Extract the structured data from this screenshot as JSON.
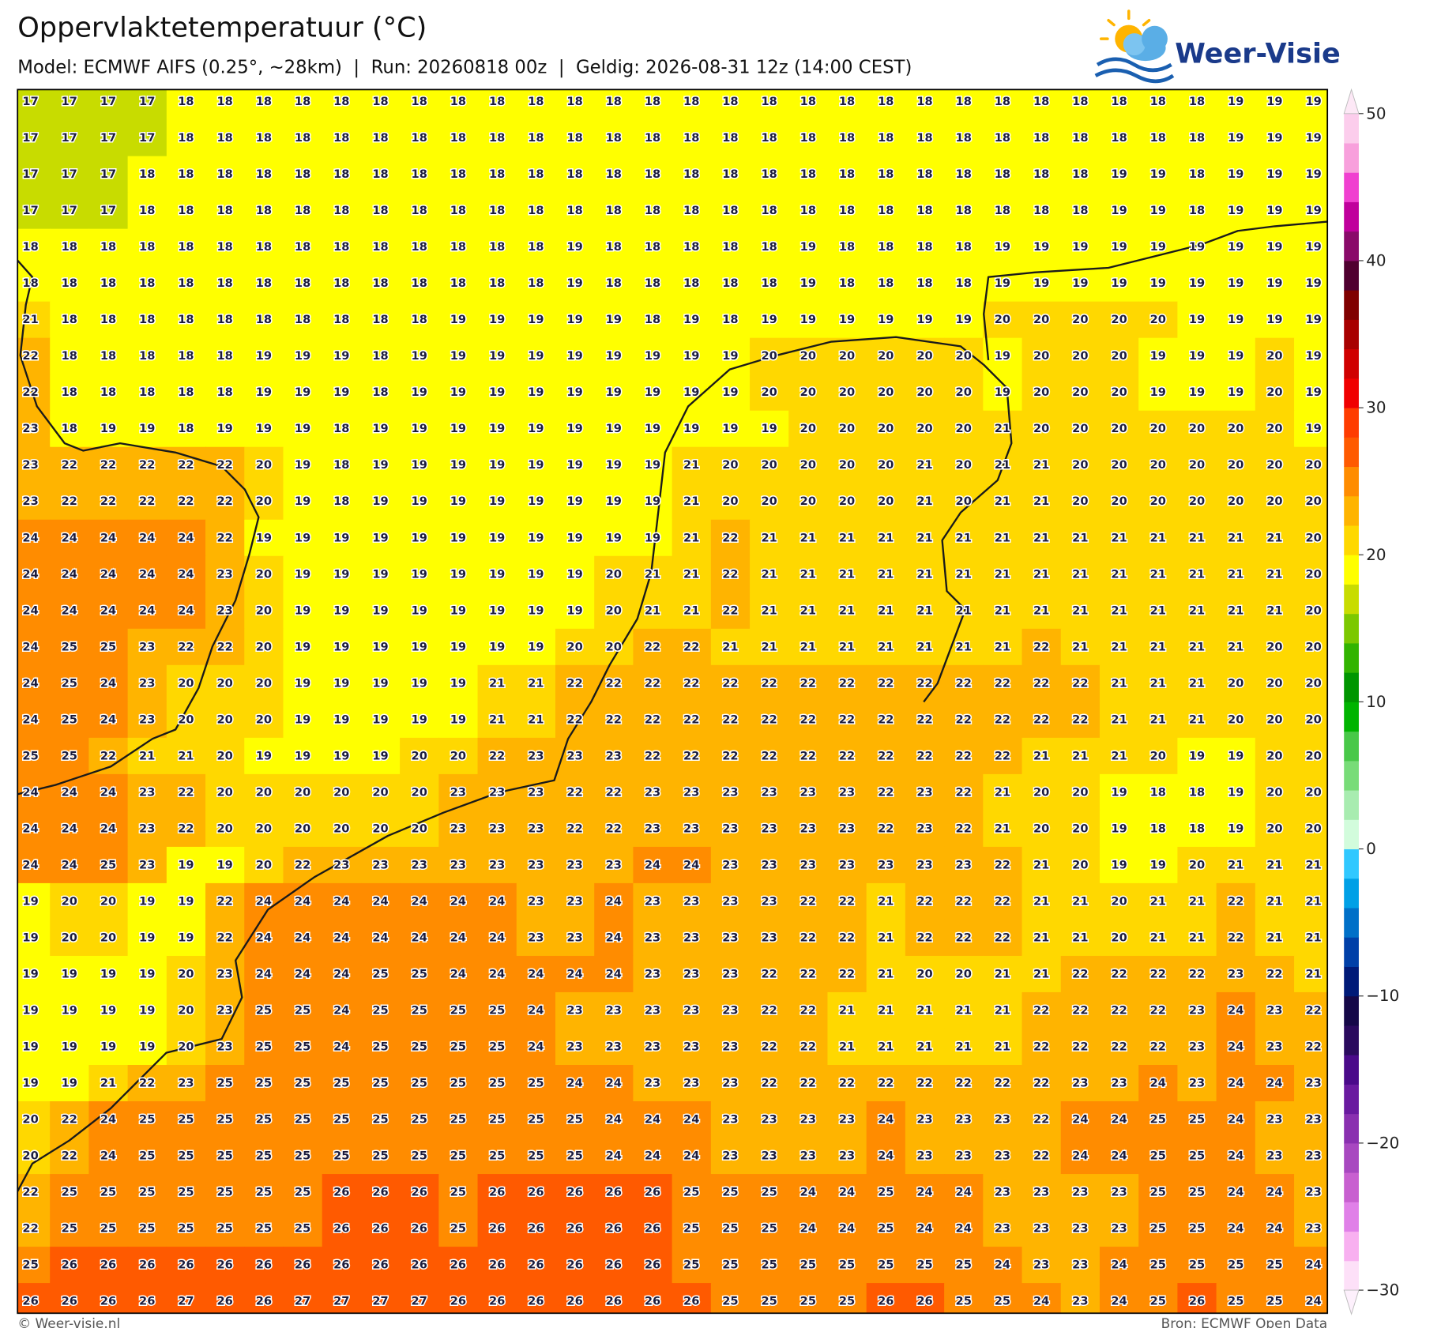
{
  "header": {
    "title": "Oppervlaktetemperatuur (°C)",
    "subtitle": "Model: ECMWF AIFS (0.25°, ~28km)  |  Run: 20260818 00z  |  Geldig: 2026-08-31 12z (14:00 CEST)",
    "logo_text": "Weer-Visie"
  },
  "map": {
    "values": [
      [
        17,
        17,
        17,
        17,
        18,
        18,
        18,
        18,
        18,
        18,
        18,
        18,
        18,
        18,
        18,
        18,
        18,
        18,
        18,
        18,
        18,
        18,
        18,
        18,
        18,
        18,
        18,
        18,
        18,
        18,
        18,
        19,
        19,
        19
      ],
      [
        17,
        17,
        17,
        17,
        18,
        18,
        18,
        18,
        18,
        18,
        18,
        18,
        18,
        18,
        18,
        18,
        18,
        18,
        18,
        18,
        18,
        18,
        18,
        18,
        18,
        18,
        18,
        18,
        18,
        18,
        18,
        19,
        19,
        19
      ],
      [
        17,
        17,
        17,
        18,
        18,
        18,
        18,
        18,
        18,
        18,
        18,
        18,
        18,
        18,
        18,
        18,
        18,
        18,
        18,
        18,
        18,
        18,
        18,
        18,
        18,
        18,
        18,
        18,
        19,
        19,
        18,
        19,
        19,
        19
      ],
      [
        17,
        17,
        17,
        18,
        18,
        18,
        18,
        18,
        18,
        18,
        18,
        18,
        18,
        18,
        18,
        18,
        18,
        18,
        18,
        18,
        18,
        18,
        18,
        18,
        18,
        18,
        18,
        18,
        19,
        19,
        18,
        19,
        19,
        19
      ],
      [
        18,
        18,
        18,
        18,
        18,
        18,
        18,
        18,
        18,
        18,
        18,
        18,
        18,
        18,
        19,
        18,
        18,
        18,
        18,
        18,
        19,
        18,
        18,
        18,
        18,
        19,
        19,
        19,
        19,
        19,
        19,
        19,
        19,
        19
      ],
      [
        18,
        18,
        18,
        18,
        18,
        18,
        18,
        18,
        18,
        18,
        18,
        18,
        18,
        18,
        19,
        18,
        18,
        18,
        18,
        18,
        19,
        18,
        18,
        18,
        18,
        19,
        19,
        19,
        19,
        19,
        19,
        19,
        19,
        19
      ],
      [
        21,
        18,
        18,
        18,
        18,
        18,
        18,
        18,
        18,
        18,
        18,
        19,
        19,
        19,
        19,
        19,
        18,
        19,
        18,
        19,
        19,
        19,
        19,
        19,
        19,
        20,
        20,
        20,
        20,
        20,
        19,
        19,
        19,
        19
      ],
      [
        22,
        18,
        18,
        18,
        18,
        18,
        19,
        19,
        19,
        18,
        19,
        19,
        19,
        19,
        19,
        19,
        19,
        19,
        19,
        20,
        20,
        20,
        20,
        20,
        20,
        19,
        20,
        20,
        20,
        19,
        19,
        19,
        20,
        19
      ],
      [
        22,
        18,
        18,
        18,
        18,
        18,
        19,
        19,
        19,
        18,
        19,
        19,
        19,
        19,
        19,
        19,
        19,
        19,
        19,
        20,
        20,
        20,
        20,
        20,
        20,
        19,
        20,
        20,
        20,
        19,
        19,
        19,
        20,
        19
      ],
      [
        23,
        18,
        19,
        19,
        18,
        19,
        19,
        19,
        18,
        19,
        19,
        19,
        19,
        19,
        19,
        19,
        19,
        19,
        19,
        19,
        20,
        20,
        20,
        20,
        20,
        21,
        20,
        20,
        20,
        20,
        20,
        20,
        20,
        19
      ],
      [
        23,
        22,
        22,
        22,
        22,
        22,
        20,
        19,
        18,
        19,
        19,
        19,
        19,
        19,
        19,
        19,
        19,
        21,
        20,
        20,
        20,
        20,
        20,
        21,
        20,
        21,
        21,
        20,
        20,
        20,
        20,
        20,
        20,
        20
      ],
      [
        23,
        22,
        22,
        22,
        22,
        22,
        20,
        19,
        18,
        19,
        19,
        19,
        19,
        19,
        19,
        19,
        19,
        21,
        20,
        20,
        20,
        20,
        20,
        21,
        20,
        21,
        21,
        20,
        20,
        20,
        20,
        20,
        20,
        20
      ],
      [
        24,
        24,
        24,
        24,
        24,
        22,
        19,
        19,
        19,
        19,
        19,
        19,
        19,
        19,
        19,
        19,
        19,
        21,
        22,
        21,
        21,
        21,
        21,
        21,
        21,
        21,
        21,
        21,
        21,
        21,
        21,
        21,
        21,
        20
      ],
      [
        24,
        24,
        24,
        24,
        24,
        23,
        20,
        19,
        19,
        19,
        19,
        19,
        19,
        19,
        19,
        20,
        21,
        21,
        22,
        21,
        21,
        21,
        21,
        21,
        21,
        21,
        21,
        21,
        21,
        21,
        21,
        21,
        21,
        20
      ],
      [
        24,
        24,
        24,
        24,
        24,
        23,
        20,
        19,
        19,
        19,
        19,
        19,
        19,
        19,
        19,
        20,
        21,
        21,
        22,
        21,
        21,
        21,
        21,
        21,
        21,
        21,
        21,
        21,
        21,
        21,
        21,
        21,
        21,
        20
      ],
      [
        24,
        25,
        25,
        23,
        22,
        22,
        20,
        19,
        19,
        19,
        19,
        19,
        19,
        19,
        20,
        20,
        22,
        22,
        21,
        21,
        21,
        21,
        21,
        21,
        21,
        21,
        22,
        21,
        21,
        21,
        21,
        21,
        20,
        20
      ],
      [
        24,
        25,
        24,
        23,
        20,
        20,
        20,
        19,
        19,
        19,
        19,
        19,
        21,
        21,
        22,
        22,
        22,
        22,
        22,
        22,
        22,
        22,
        22,
        22,
        22,
        22,
        22,
        22,
        21,
        21,
        21,
        20,
        20,
        20
      ],
      [
        24,
        25,
        24,
        23,
        20,
        20,
        20,
        19,
        19,
        19,
        19,
        19,
        21,
        21,
        22,
        22,
        22,
        22,
        22,
        22,
        22,
        22,
        22,
        22,
        22,
        22,
        22,
        22,
        21,
        21,
        21,
        20,
        20,
        20
      ],
      [
        25,
        25,
        22,
        21,
        21,
        20,
        19,
        19,
        19,
        19,
        20,
        20,
        22,
        23,
        23,
        23,
        22,
        22,
        22,
        22,
        22,
        22,
        22,
        22,
        22,
        22,
        21,
        21,
        21,
        20,
        19,
        19,
        20,
        20
      ],
      [
        24,
        24,
        24,
        23,
        22,
        20,
        20,
        20,
        20,
        20,
        20,
        23,
        23,
        23,
        22,
        22,
        23,
        23,
        23,
        23,
        23,
        23,
        22,
        23,
        22,
        21,
        20,
        20,
        19,
        18,
        18,
        19,
        20,
        20
      ],
      [
        24,
        24,
        24,
        23,
        22,
        20,
        20,
        20,
        20,
        20,
        20,
        23,
        23,
        23,
        22,
        22,
        23,
        23,
        23,
        23,
        23,
        23,
        22,
        23,
        22,
        21,
        20,
        20,
        19,
        18,
        18,
        19,
        20,
        20
      ],
      [
        24,
        24,
        25,
        23,
        19,
        19,
        20,
        22,
        23,
        23,
        23,
        23,
        23,
        23,
        23,
        23,
        24,
        24,
        23,
        23,
        23,
        23,
        23,
        23,
        23,
        22,
        21,
        20,
        19,
        19,
        20,
        21,
        21,
        21
      ],
      [
        19,
        20,
        20,
        19,
        19,
        22,
        24,
        24,
        24,
        24,
        24,
        24,
        24,
        23,
        23,
        24,
        23,
        23,
        23,
        23,
        22,
        22,
        21,
        22,
        22,
        22,
        21,
        21,
        20,
        21,
        21,
        22,
        21,
        21
      ],
      [
        19,
        20,
        20,
        19,
        19,
        22,
        24,
        24,
        24,
        24,
        24,
        24,
        24,
        23,
        23,
        24,
        23,
        23,
        23,
        23,
        22,
        22,
        21,
        22,
        22,
        22,
        21,
        21,
        20,
        21,
        21,
        22,
        21,
        21
      ],
      [
        19,
        19,
        19,
        19,
        20,
        23,
        24,
        24,
        24,
        25,
        25,
        24,
        24,
        24,
        24,
        24,
        23,
        23,
        23,
        22,
        22,
        22,
        21,
        20,
        20,
        21,
        21,
        22,
        22,
        22,
        22,
        23,
        22,
        21
      ],
      [
        19,
        19,
        19,
        19,
        20,
        23,
        25,
        25,
        24,
        25,
        25,
        25,
        25,
        24,
        23,
        23,
        23,
        23,
        23,
        22,
        22,
        21,
        21,
        21,
        21,
        21,
        22,
        22,
        22,
        22,
        23,
        24,
        23,
        22
      ],
      [
        19,
        19,
        19,
        19,
        20,
        23,
        25,
        25,
        24,
        25,
        25,
        25,
        25,
        24,
        23,
        23,
        23,
        23,
        23,
        22,
        22,
        21,
        21,
        21,
        21,
        21,
        22,
        22,
        22,
        22,
        23,
        24,
        23,
        22
      ],
      [
        19,
        19,
        21,
        22,
        23,
        25,
        25,
        25,
        25,
        25,
        25,
        25,
        25,
        25,
        24,
        24,
        23,
        23,
        23,
        22,
        22,
        22,
        22,
        22,
        22,
        22,
        22,
        23,
        23,
        24,
        23,
        24,
        24,
        23
      ],
      [
        20,
        22,
        24,
        25,
        25,
        25,
        25,
        25,
        25,
        25,
        25,
        25,
        25,
        25,
        25,
        24,
        24,
        24,
        23,
        23,
        23,
        23,
        24,
        23,
        23,
        23,
        22,
        24,
        24,
        25,
        25,
        24,
        23,
        23
      ],
      [
        20,
        22,
        24,
        25,
        25,
        25,
        25,
        25,
        25,
        25,
        25,
        25,
        25,
        25,
        25,
        24,
        24,
        24,
        23,
        23,
        23,
        23,
        24,
        23,
        23,
        23,
        22,
        24,
        24,
        25,
        25,
        24,
        23,
        23
      ],
      [
        22,
        25,
        25,
        25,
        25,
        25,
        25,
        25,
        26,
        26,
        26,
        25,
        26,
        26,
        26,
        26,
        26,
        25,
        25,
        25,
        24,
        24,
        25,
        24,
        24,
        23,
        23,
        23,
        23,
        25,
        25,
        24,
        24,
        23
      ],
      [
        22,
        25,
        25,
        25,
        25,
        25,
        25,
        25,
        26,
        26,
        26,
        25,
        26,
        26,
        26,
        26,
        26,
        25,
        25,
        25,
        24,
        24,
        25,
        24,
        24,
        23,
        23,
        23,
        23,
        25,
        25,
        24,
        24,
        23
      ],
      [
        25,
        26,
        26,
        26,
        26,
        26,
        26,
        26,
        26,
        26,
        26,
        26,
        26,
        26,
        26,
        26,
        26,
        25,
        25,
        25,
        25,
        25,
        25,
        25,
        25,
        24,
        23,
        23,
        24,
        25,
        25,
        25,
        25,
        24
      ],
      [
        26,
        26,
        26,
        26,
        27,
        26,
        26,
        27,
        27,
        27,
        27,
        26,
        26,
        26,
        26,
        26,
        26,
        26,
        25,
        25,
        25,
        25,
        26,
        26,
        25,
        25,
        24,
        23,
        24,
        25,
        26,
        25,
        25,
        24
      ]
    ],
    "colorbar": {
      "levels": [
        -30,
        -28,
        -26,
        -24,
        -22,
        -20,
        -18,
        -16,
        -14,
        -12,
        -10,
        -8,
        -6,
        -4,
        -2,
        0,
        2,
        4,
        6,
        8,
        10,
        12,
        14,
        16,
        18,
        20,
        22,
        24,
        26,
        28,
        30,
        32,
        34,
        36,
        38,
        40,
        42,
        44,
        46,
        48,
        50
      ],
      "colors": [
        "#fde0f8",
        "#f8b0f0",
        "#e080e8",
        "#c860d0",
        "#a848c0",
        "#8a30b0",
        "#6a1aa0",
        "#4a0a8a",
        "#2a0a5e",
        "#150848",
        "#001a78",
        "#0040a8",
        "#0070c8",
        "#00a0e6",
        "#30c8ff",
        "#d2fcdc",
        "#a8ecb0",
        "#78dc78",
        "#48c848",
        "#00b400",
        "#009600",
        "#32b400",
        "#7cc800",
        "#c8dc00",
        "#ffff00",
        "#ffd800",
        "#ffb400",
        "#ff8c00",
        "#ff5a00",
        "#ff3c00",
        "#f00000",
        "#d00000",
        "#a80000",
        "#800000",
        "#500030",
        "#8a0a6a",
        "#c0009c",
        "#f040d0",
        "#f8a0dc",
        "#fccdec"
      ],
      "over_color": "#fde8f6",
      "under_color": "#fdf0fc",
      "ticks": [
        50,
        40,
        30,
        20,
        10,
        0,
        {
          "value": -10,
          "label": "−10"
        },
        {
          "value": -20,
          "label": "−20"
        },
        {
          "value": -30,
          "label": "−30"
        }
      ]
    }
  },
  "footer": {
    "left": "© Weer-visie.nl",
    "right": "Bron: ECMWF Open Data"
  }
}
